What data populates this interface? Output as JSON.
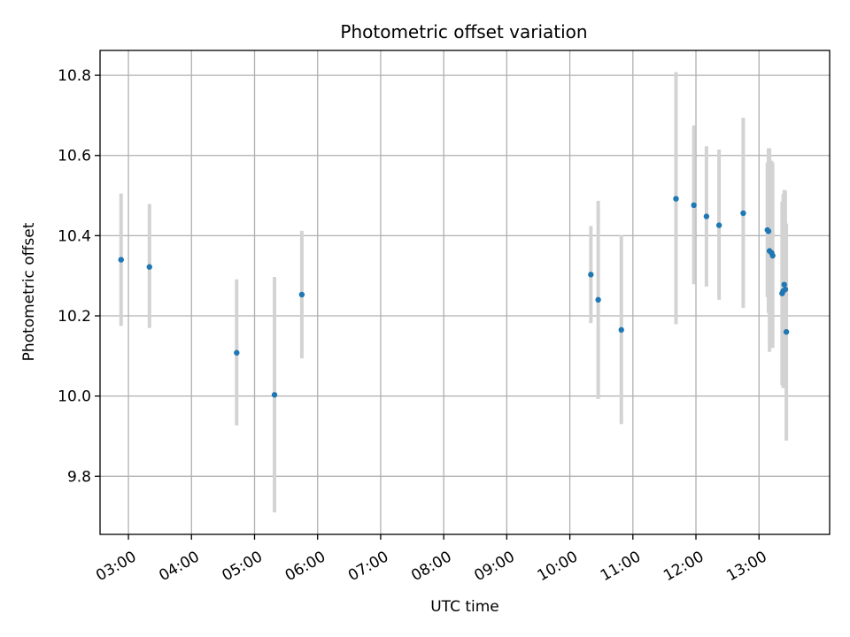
{
  "chart_data": {
    "type": "scatter",
    "title": "Photometric offset variation",
    "xlabel": "UTC time",
    "ylabel": "Photometric offset",
    "grid": true,
    "xlim_hours": [
      2.55,
      14.12
    ],
    "ylim": [
      9.655,
      10.862
    ],
    "x_ticks": [
      {
        "label": "03:00",
        "hour": 3
      },
      {
        "label": "04:00",
        "hour": 4
      },
      {
        "label": "05:00",
        "hour": 5
      },
      {
        "label": "06:00",
        "hour": 6
      },
      {
        "label": "07:00",
        "hour": 7
      },
      {
        "label": "08:00",
        "hour": 8
      },
      {
        "label": "09:00",
        "hour": 9
      },
      {
        "label": "10:00",
        "hour": 10
      },
      {
        "label": "11:00",
        "hour": 11
      },
      {
        "label": "12:00",
        "hour": 12
      },
      {
        "label": "13:00",
        "hour": 13
      }
    ],
    "y_ticks": [
      {
        "label": "9.8",
        "value": 9.8
      },
      {
        "label": "10.0",
        "value": 10.0
      },
      {
        "label": "10.2",
        "value": 10.2
      },
      {
        "label": "10.4",
        "value": 10.4
      },
      {
        "label": "10.6",
        "value": 10.6
      },
      {
        "label": "10.8",
        "value": 10.8
      }
    ],
    "colors": {
      "point": "#1f77b4",
      "errorbar": "#d3d3d3",
      "grid": "#b0b0b0"
    },
    "points": [
      {
        "time": "02:53",
        "offset": 10.34,
        "err_low": 10.175,
        "err_high": 10.505
      },
      {
        "time": "03:20",
        "offset": 10.322,
        "err_low": 10.17,
        "err_high": 10.479
      },
      {
        "time": "04:43",
        "offset": 10.108,
        "err_low": 9.927,
        "err_high": 10.291
      },
      {
        "time": "05:19",
        "offset": 10.003,
        "err_low": 9.71,
        "err_high": 10.297
      },
      {
        "time": "05:45",
        "offset": 10.253,
        "err_low": 10.094,
        "err_high": 10.412
      },
      {
        "time": "10:20",
        "offset": 10.303,
        "err_low": 10.182,
        "err_high": 10.424
      },
      {
        "time": "10:27",
        "offset": 10.24,
        "err_low": 9.993,
        "err_high": 10.487
      },
      {
        "time": "10:49",
        "offset": 10.165,
        "err_low": 9.93,
        "err_high": 10.401
      },
      {
        "time": "11:41",
        "offset": 10.492,
        "err_low": 10.179,
        "err_high": 10.808
      },
      {
        "time": "11:58",
        "offset": 10.476,
        "err_low": 10.279,
        "err_high": 10.675
      },
      {
        "time": "12:10",
        "offset": 10.448,
        "err_low": 10.273,
        "err_high": 10.623
      },
      {
        "time": "12:22",
        "offset": 10.426,
        "err_low": 10.24,
        "err_high": 10.615
      },
      {
        "time": "12:45",
        "offset": 10.456,
        "err_low": 10.22,
        "err_high": 10.694
      },
      {
        "time": "13:08",
        "offset": 10.414,
        "err_low": 10.247,
        "err_high": 10.583
      },
      {
        "time": "13:09",
        "offset": 10.411,
        "err_low": 10.207,
        "err_high": 10.618
      },
      {
        "time": "13:10",
        "offset": 10.362,
        "err_low": 10.11,
        "err_high": 10.618
      },
      {
        "time": "13:12",
        "offset": 10.357,
        "err_low": 10.125,
        "err_high": 10.587
      },
      {
        "time": "13:13",
        "offset": 10.35,
        "err_low": 10.12,
        "err_high": 10.582
      },
      {
        "time": "13:22",
        "offset": 10.256,
        "err_low": 10.027,
        "err_high": 10.485
      },
      {
        "time": "13:23",
        "offset": 10.262,
        "err_low": 10.02,
        "err_high": 10.504
      },
      {
        "time": "13:24",
        "offset": 10.278,
        "err_low": 10.03,
        "err_high": 10.514
      },
      {
        "time": "13:25",
        "offset": 10.266,
        "err_low": 10.022,
        "err_high": 10.512
      },
      {
        "time": "13:26",
        "offset": 10.16,
        "err_low": 9.889,
        "err_high": 10.43
      }
    ]
  }
}
